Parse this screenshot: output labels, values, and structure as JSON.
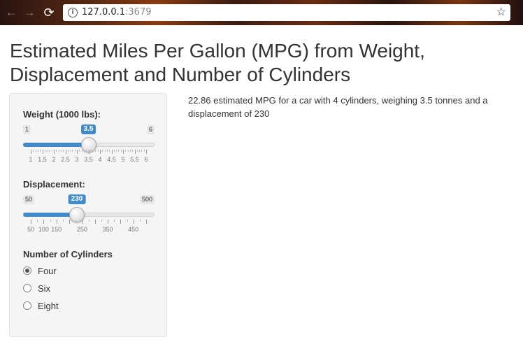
{
  "browser": {
    "url_host": "127.0.0.1",
    "url_port": ":3679",
    "back_icon": "arrow-left-icon",
    "forward_icon": "arrow-right-icon",
    "reload_icon": "reload-icon",
    "info_icon": "info-icon",
    "bookmark_icon": "star-icon"
  },
  "page": {
    "title": "Estimated Miles Per Gallon (MPG) from Weight, Displacement and Number of Cylinders",
    "output": "22.86 estimated MPG for a car with 4 cylinders, weighing 3.5 tonnes and a displacement of 230"
  },
  "weight_slider": {
    "label": "Weight (1000 lbs):",
    "min": 1,
    "max": 6,
    "value": 3.5,
    "step_minor": 0.1,
    "tick_labels": [
      "1",
      "1.5",
      "2",
      "2.5",
      "3",
      "3.5",
      "4",
      "4.5",
      "5",
      "5.5",
      "6"
    ]
  },
  "displacement_slider": {
    "label": "Displacement:",
    "min": 50,
    "max": 500,
    "value": 230,
    "tick_labels": [
      "50",
      "100",
      "150",
      "250",
      "350",
      "450"
    ],
    "tick_values": [
      50,
      100,
      150,
      250,
      350,
      450
    ]
  },
  "cylinders": {
    "label": "Number of Cylinders",
    "options": [
      "Four",
      "Six",
      "Eight"
    ],
    "selected": "Four"
  },
  "colors": {
    "accent": "#428bca"
  }
}
